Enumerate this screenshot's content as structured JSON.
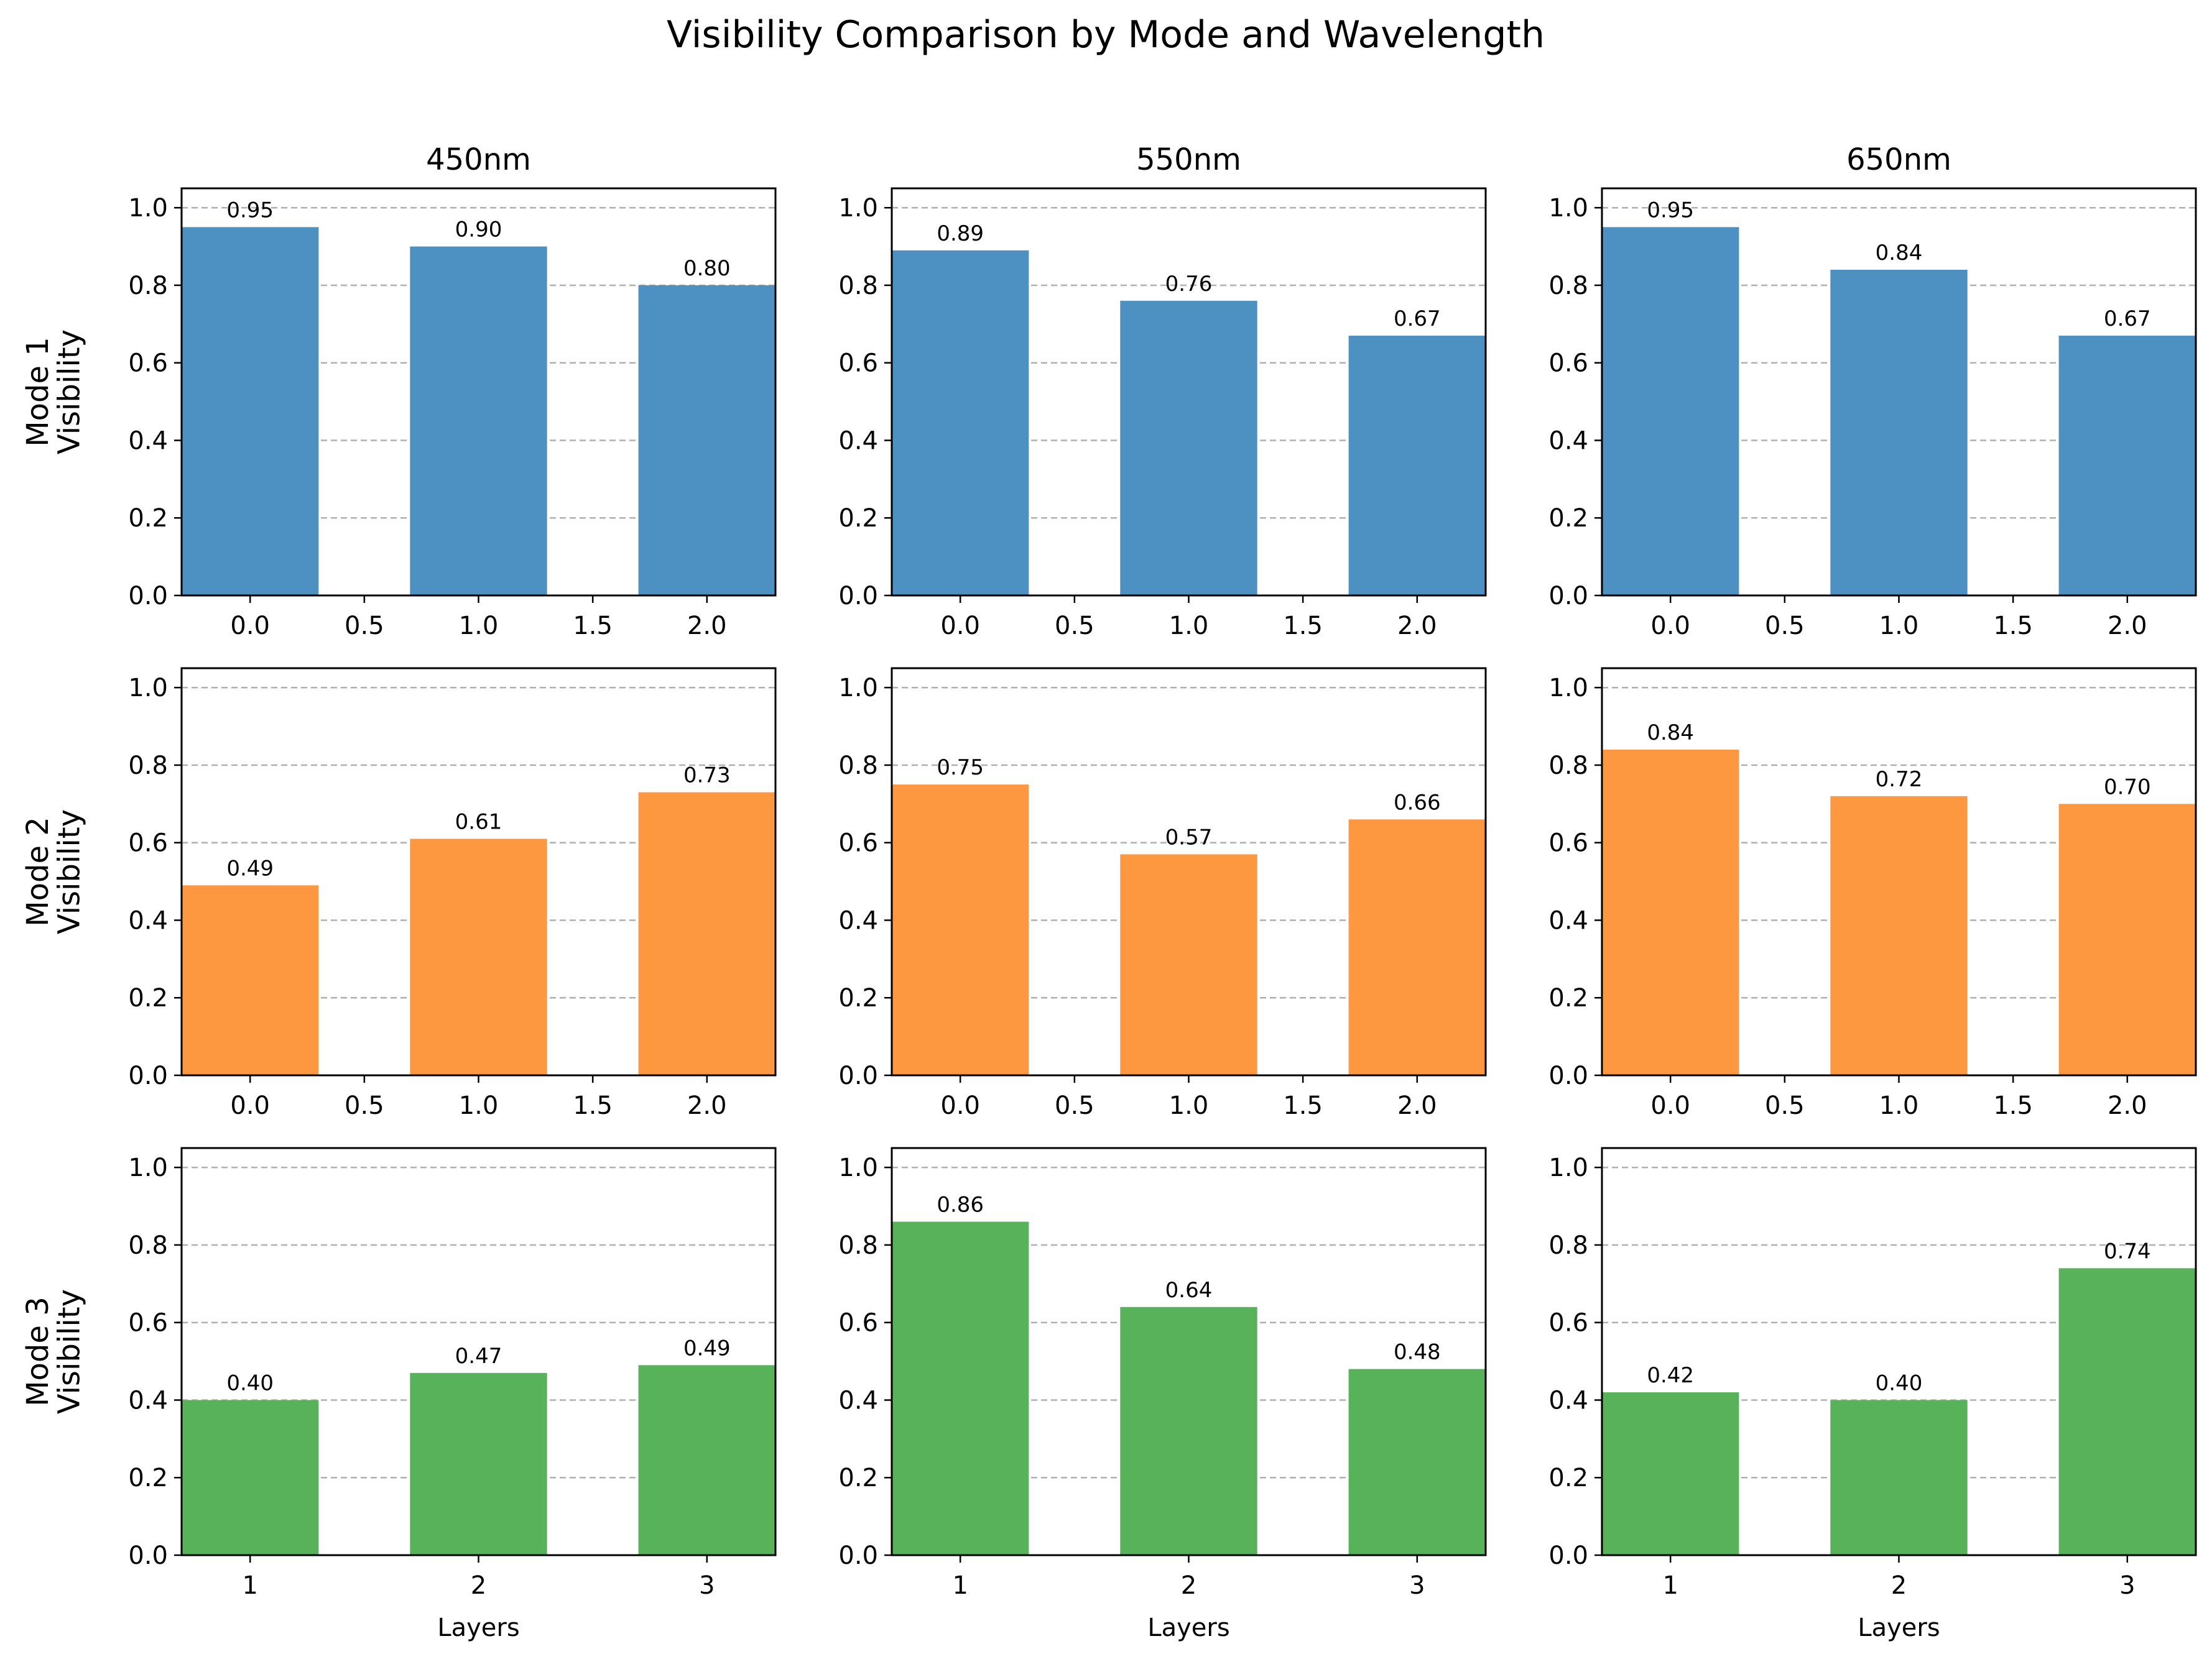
{
  "figure": {
    "title": "Visibility Comparison by Mode and Wavelength"
  },
  "chart_data": [
    {
      "type": "bar",
      "row_label": "Mode 1\nVisibility",
      "column_title": "450nm",
      "x": [
        0,
        1,
        2
      ],
      "values": [
        0.95,
        0.9,
        0.8
      ],
      "data_labels": [
        "0.95",
        "0.90",
        "0.80"
      ],
      "color": "#4c91c2",
      "xticks": [
        0.0,
        0.5,
        1.0,
        1.5,
        2.0
      ],
      "xtick_labels": [
        "0.0",
        "0.5",
        "1.0",
        "1.5",
        "2.0"
      ],
      "xlim": [
        -0.3,
        2.3
      ],
      "ylim": [
        0,
        1.05
      ],
      "yticks": [
        0.0,
        0.2,
        0.4,
        0.6,
        0.8,
        1.0
      ],
      "ytick_labels": [
        "0.0",
        "0.2",
        "0.4",
        "0.6",
        "0.8",
        "1.0"
      ],
      "xlabel": "",
      "grid": "y-dashed"
    },
    {
      "type": "bar",
      "column_title": "550nm",
      "x": [
        0,
        1,
        2
      ],
      "values": [
        0.89,
        0.76,
        0.67
      ],
      "data_labels": [
        "0.89",
        "0.76",
        "0.67"
      ],
      "color": "#4c91c2",
      "xticks": [
        0.0,
        0.5,
        1.0,
        1.5,
        2.0
      ],
      "xtick_labels": [
        "0.0",
        "0.5",
        "1.0",
        "1.5",
        "2.0"
      ],
      "xlim": [
        -0.3,
        2.3
      ],
      "ylim": [
        0,
        1.05
      ],
      "yticks": [
        0.0,
        0.2,
        0.4,
        0.6,
        0.8,
        1.0
      ],
      "ytick_labels": [
        "0.0",
        "0.2",
        "0.4",
        "0.6",
        "0.8",
        "1.0"
      ],
      "xlabel": "",
      "grid": "y-dashed"
    },
    {
      "type": "bar",
      "column_title": "650nm",
      "x": [
        0,
        1,
        2
      ],
      "values": [
        0.95,
        0.84,
        0.67
      ],
      "data_labels": [
        "0.95",
        "0.84",
        "0.67"
      ],
      "color": "#4c91c2",
      "xticks": [
        0.0,
        0.5,
        1.0,
        1.5,
        2.0
      ],
      "xtick_labels": [
        "0.0",
        "0.5",
        "1.0",
        "1.5",
        "2.0"
      ],
      "xlim": [
        -0.3,
        2.3
      ],
      "ylim": [
        0,
        1.05
      ],
      "yticks": [
        0.0,
        0.2,
        0.4,
        0.6,
        0.8,
        1.0
      ],
      "ytick_labels": [
        "0.0",
        "0.2",
        "0.4",
        "0.6",
        "0.8",
        "1.0"
      ],
      "xlabel": "",
      "grid": "y-dashed"
    },
    {
      "type": "bar",
      "row_label": "Mode 2\nVisibility",
      "x": [
        0,
        1,
        2
      ],
      "values": [
        0.49,
        0.61,
        0.73
      ],
      "data_labels": [
        "0.49",
        "0.61",
        "0.73"
      ],
      "color": "#fe9840",
      "xticks": [
        0.0,
        0.5,
        1.0,
        1.5,
        2.0
      ],
      "xtick_labels": [
        "0.0",
        "0.5",
        "1.0",
        "1.5",
        "2.0"
      ],
      "xlim": [
        -0.3,
        2.3
      ],
      "ylim": [
        0,
        1.05
      ],
      "yticks": [
        0.0,
        0.2,
        0.4,
        0.6,
        0.8,
        1.0
      ],
      "ytick_labels": [
        "0.0",
        "0.2",
        "0.4",
        "0.6",
        "0.8",
        "1.0"
      ],
      "xlabel": "",
      "grid": "y-dashed"
    },
    {
      "type": "bar",
      "x": [
        0,
        1,
        2
      ],
      "values": [
        0.75,
        0.57,
        0.66
      ],
      "data_labels": [
        "0.75",
        "0.57",
        "0.66"
      ],
      "color": "#fe9840",
      "xticks": [
        0.0,
        0.5,
        1.0,
        1.5,
        2.0
      ],
      "xtick_labels": [
        "0.0",
        "0.5",
        "1.0",
        "1.5",
        "2.0"
      ],
      "xlim": [
        -0.3,
        2.3
      ],
      "ylim": [
        0,
        1.05
      ],
      "yticks": [
        0.0,
        0.2,
        0.4,
        0.6,
        0.8,
        1.0
      ],
      "ytick_labels": [
        "0.0",
        "0.2",
        "0.4",
        "0.6",
        "0.8",
        "1.0"
      ],
      "xlabel": "",
      "grid": "y-dashed"
    },
    {
      "type": "bar",
      "x": [
        0,
        1,
        2
      ],
      "values": [
        0.84,
        0.72,
        0.7
      ],
      "data_labels": [
        "0.84",
        "0.72",
        "0.70"
      ],
      "color": "#fe9840",
      "xticks": [
        0.0,
        0.5,
        1.0,
        1.5,
        2.0
      ],
      "xtick_labels": [
        "0.0",
        "0.5",
        "1.0",
        "1.5",
        "2.0"
      ],
      "xlim": [
        -0.3,
        2.3
      ],
      "ylim": [
        0,
        1.05
      ],
      "yticks": [
        0.0,
        0.2,
        0.4,
        0.6,
        0.8,
        1.0
      ],
      "ytick_labels": [
        "0.0",
        "0.2",
        "0.4",
        "0.6",
        "0.8",
        "1.0"
      ],
      "xlabel": "",
      "grid": "y-dashed"
    },
    {
      "type": "bar",
      "row_label": "Mode 3\nVisibility",
      "x": [
        0,
        1,
        2
      ],
      "values": [
        0.4,
        0.47,
        0.49
      ],
      "data_labels": [
        "0.40",
        "0.47",
        "0.49"
      ],
      "color": "#58b259",
      "xticks": [
        0,
        1,
        2
      ],
      "xtick_labels": [
        "1",
        "2",
        "3"
      ],
      "xlim": [
        -0.3,
        2.3
      ],
      "ylim": [
        0,
        1.05
      ],
      "yticks": [
        0.0,
        0.2,
        0.4,
        0.6,
        0.8,
        1.0
      ],
      "ytick_labels": [
        "0.0",
        "0.2",
        "0.4",
        "0.6",
        "0.8",
        "1.0"
      ],
      "xlabel": "Layers",
      "grid": "y-dashed"
    },
    {
      "type": "bar",
      "x": [
        0,
        1,
        2
      ],
      "values": [
        0.86,
        0.64,
        0.48
      ],
      "data_labels": [
        "0.86",
        "0.64",
        "0.48"
      ],
      "color": "#58b259",
      "xticks": [
        0,
        1,
        2
      ],
      "xtick_labels": [
        "1",
        "2",
        "3"
      ],
      "xlim": [
        -0.3,
        2.3
      ],
      "ylim": [
        0,
        1.05
      ],
      "yticks": [
        0.0,
        0.2,
        0.4,
        0.6,
        0.8,
        1.0
      ],
      "ytick_labels": [
        "0.0",
        "0.2",
        "0.4",
        "0.6",
        "0.8",
        "1.0"
      ],
      "xlabel": "Layers",
      "grid": "y-dashed"
    },
    {
      "type": "bar",
      "x": [
        0,
        1,
        2
      ],
      "values": [
        0.42,
        0.4,
        0.74
      ],
      "data_labels": [
        "0.42",
        "0.40",
        "0.74"
      ],
      "color": "#58b259",
      "xticks": [
        0,
        1,
        2
      ],
      "xtick_labels": [
        "1",
        "2",
        "3"
      ],
      "xlim": [
        -0.3,
        2.3
      ],
      "ylim": [
        0,
        1.05
      ],
      "yticks": [
        0.0,
        0.2,
        0.4,
        0.6,
        0.8,
        1.0
      ],
      "ytick_labels": [
        "0.0",
        "0.2",
        "0.4",
        "0.6",
        "0.8",
        "1.0"
      ],
      "xlabel": "Layers",
      "grid": "y-dashed"
    }
  ]
}
